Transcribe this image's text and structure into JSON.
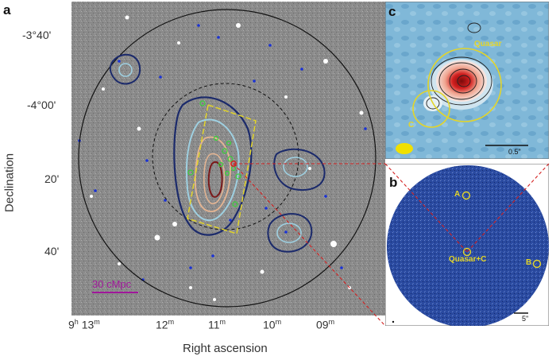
{
  "panel_a": {
    "letter": "a",
    "y_axis_label": "Declination",
    "x_axis_label": "Right ascension",
    "y_ticks": [
      "-3°40'",
      "-4°00'",
      "20'",
      "40'"
    ],
    "x_ticks": [
      {
        "h": "9",
        "hu": "h",
        "m": "13",
        "mu": "m"
      },
      {
        "m": "12",
        "mu": "m"
      },
      {
        "m": "11",
        "mu": "m"
      },
      {
        "m": "10",
        "mu": "m"
      },
      {
        "m": "09",
        "mu": "m"
      }
    ],
    "scale_bar": "30 cMpc"
  },
  "panel_b": {
    "letter": "b",
    "labels": [
      "A",
      "Quasar+C",
      "B"
    ],
    "scale_bar": "5\""
  },
  "panel_c": {
    "letter": "c",
    "labels": [
      "Quasar",
      "C"
    ],
    "scale_bar": "0.5\""
  },
  "colors": {
    "sky_gray": "#8a8a8a",
    "contour_dark": "#1b2a6b",
    "contour_light": "#9ecfe0",
    "contour_orange": "#e5b592",
    "contour_core": "#7a1a1a",
    "galaxy_dot": "#1a32d6",
    "source_green": "#3ad23a",
    "box_yellow": "#e3d52a",
    "scale_magenta": "#a0179a",
    "link_red": "#d42020",
    "panel_b_bg": "#203a8a",
    "panel_c_bg": "#7fb6d6"
  }
}
